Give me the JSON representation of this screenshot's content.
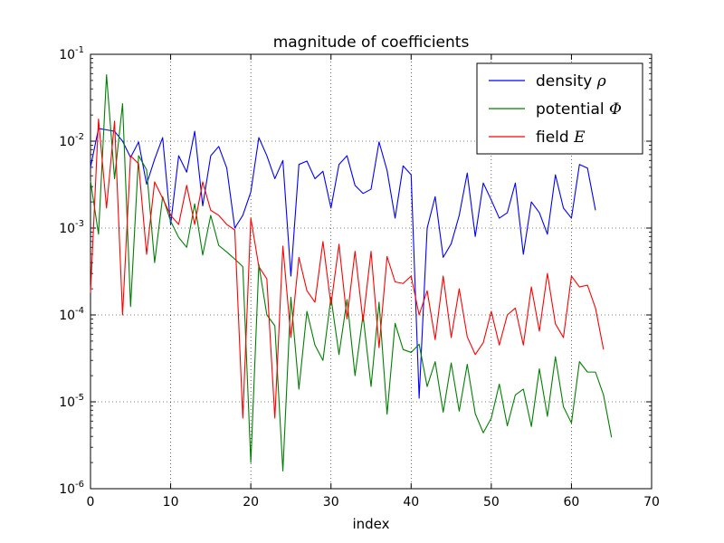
{
  "chart_data": {
    "type": "line",
    "title": "magnitude of coefficients",
    "xlabel": "index",
    "ylabel": "",
    "yscale": "log",
    "xlim": [
      0,
      70
    ],
    "ylim": [
      1e-06,
      0.1
    ],
    "xticks": [
      {
        "value": 0,
        "label": "0"
      },
      {
        "value": 10,
        "label": "10"
      },
      {
        "value": 20,
        "label": "20"
      },
      {
        "value": 30,
        "label": "30"
      },
      {
        "value": 40,
        "label": "40"
      },
      {
        "value": 50,
        "label": "50"
      },
      {
        "value": 60,
        "label": "60"
      },
      {
        "value": 70,
        "label": "70"
      }
    ],
    "yticks": [
      {
        "value": 1e-06,
        "base": "10",
        "exp": "-6"
      },
      {
        "value": 1e-05,
        "base": "10",
        "exp": "-5"
      },
      {
        "value": 0.0001,
        "base": "10",
        "exp": "-4"
      },
      {
        "value": 0.001,
        "base": "10",
        "exp": "-3"
      },
      {
        "value": 0.01,
        "base": "10",
        "exp": "-2"
      },
      {
        "value": 0.1,
        "base": "10",
        "exp": "-1"
      }
    ],
    "grid": true,
    "legend_position": "top-right",
    "series": [
      {
        "name": "density",
        "symbol": "ρ",
        "color": "#0000ff",
        "y": [
          0.005,
          0.014,
          0.0135,
          0.013,
          0.01,
          0.0065,
          0.0098,
          0.0032,
          0.0062,
          0.011,
          0.0011,
          0.0068,
          0.0044,
          0.013,
          0.0018,
          0.0068,
          0.0087,
          0.0049,
          0.001,
          0.0014,
          0.0026,
          0.011,
          0.0068,
          0.0037,
          0.006,
          0.00028,
          0.0054,
          0.0059,
          0.0037,
          0.0045,
          0.0017,
          0.0054,
          0.0068,
          0.0031,
          0.0025,
          0.0028,
          0.0098,
          0.0046,
          0.0013,
          0.0052,
          0.0041,
          1.1e-05,
          0.001,
          0.0023,
          0.00046,
          0.00066,
          0.0014,
          0.0043,
          0.0008,
          0.0033,
          0.0021,
          0.0013,
          0.0015,
          0.0033,
          0.0005,
          0.002,
          0.0015,
          0.00085,
          0.0041,
          0.0017,
          0.0013,
          0.0054,
          0.0049,
          0.0016
        ]
      },
      {
        "name": "potential",
        "symbol": "Φ",
        "color": "#008000",
        "y": [
          0.0035,
          0.00085,
          0.058,
          0.0037,
          0.027,
          0.000125,
          0.0068,
          0.0047,
          0.0004,
          0.0023,
          0.0012,
          0.00078,
          0.0006,
          0.0019,
          0.00049,
          0.0014,
          0.00063,
          0.00053,
          0.00044,
          0.00036,
          2e-06,
          0.00038,
          0.0001,
          7.5e-05,
          1.6e-06,
          0.00016,
          1.4e-05,
          0.00011,
          4.5e-05,
          3e-05,
          0.00016,
          3.5e-05,
          0.00015,
          2e-05,
          0.0001,
          1.5e-05,
          0.00014,
          7.2e-06,
          8e-05,
          4e-05,
          3.7e-05,
          4.6e-05,
          1.5e-05,
          2.9e-05,
          7.6e-06,
          2.8e-05,
          7.8e-06,
          2.7e-05,
          7.3e-06,
          4.4e-06,
          6.5e-06,
          1.6e-05,
          5.3e-06,
          1.2e-05,
          1.4e-05,
          5.2e-06,
          2.4e-05,
          6.8e-06,
          3.3e-05,
          8.8e-06,
          5.7e-06,
          2.9e-05,
          2.2e-05,
          2.2e-05,
          1.2e-05,
          3.9e-06
        ]
      },
      {
        "name": "field",
        "symbol": "E",
        "color": "#ff0000",
        "y": [
          0.00018,
          0.018,
          0.0017,
          0.017,
          0.0001,
          0.0068,
          0.0055,
          0.0005,
          0.0034,
          0.0022,
          0.0014,
          0.0011,
          0.0031,
          0.0011,
          0.0034,
          0.0016,
          0.0014,
          0.0011,
          0.00095,
          6.5e-06,
          0.0013,
          0.00036,
          0.00026,
          6.5e-06,
          0.00062,
          5.5e-05,
          0.00046,
          0.00019,
          0.00014,
          0.0007,
          0.00013,
          0.00065,
          9e-05,
          0.00054,
          8.5e-05,
          0.00054,
          4.2e-05,
          0.00047,
          0.00024,
          0.00023,
          0.00028,
          0.0001,
          0.00019,
          5.2e-05,
          0.00028,
          5.5e-05,
          0.0002,
          5.6e-05,
          3.5e-05,
          4.8e-05,
          0.00011,
          4.5e-05,
          0.0001,
          0.00012,
          4.5e-05,
          0.00021,
          6.5e-05,
          0.0003,
          7.9e-05,
          5.5e-05,
          0.00028,
          0.00021,
          0.00022,
          0.00012,
          4e-05
        ]
      }
    ]
  }
}
